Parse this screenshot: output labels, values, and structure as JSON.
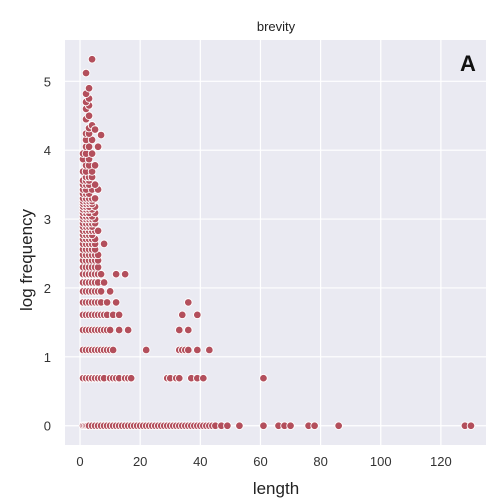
{
  "chart_data": {
    "type": "scatter",
    "title": "brevity",
    "panel_label": "A",
    "xlabel": "length",
    "ylabel": "log frequency",
    "xlim": [
      -5,
      135
    ],
    "ylim": [
      -0.28,
      5.6
    ],
    "xticks": [
      0,
      20,
      40,
      60,
      80,
      100,
      120
    ],
    "yticks": [
      0,
      1,
      2,
      3,
      4,
      5
    ],
    "grid": true,
    "style": {
      "background": "#eaeaf2",
      "grid_color": "#ffffff",
      "marker_color": "#b34f5c",
      "marker_edge": "#ffffff"
    },
    "series": [
      {
        "points": [
          [
            1,
            0
          ],
          [
            1.5,
            0
          ],
          [
            2,
            0
          ],
          [
            2.5,
            0
          ],
          [
            3,
            0
          ],
          [
            4,
            0
          ],
          [
            5,
            0
          ],
          [
            6,
            0
          ],
          [
            7,
            0
          ],
          [
            8,
            0
          ],
          [
            9,
            0
          ],
          [
            10,
            0
          ],
          [
            11,
            0
          ],
          [
            12,
            0
          ],
          [
            13,
            0
          ],
          [
            14,
            0
          ],
          [
            15,
            0
          ],
          [
            16,
            0
          ],
          [
            17,
            0
          ],
          [
            18,
            0
          ],
          [
            19,
            0
          ],
          [
            20,
            0
          ],
          [
            21,
            0
          ],
          [
            22,
            0
          ],
          [
            23,
            0
          ],
          [
            24,
            0
          ],
          [
            25,
            0
          ],
          [
            26,
            0
          ],
          [
            27,
            0
          ],
          [
            28,
            0
          ],
          [
            29,
            0
          ],
          [
            30,
            0
          ],
          [
            31,
            0
          ],
          [
            32,
            0
          ],
          [
            33,
            0
          ],
          [
            34,
            0
          ],
          [
            35,
            0
          ],
          [
            36,
            0
          ],
          [
            37,
            0
          ],
          [
            38,
            0
          ],
          [
            39,
            0
          ],
          [
            40,
            0
          ],
          [
            41,
            0
          ],
          [
            42,
            0
          ],
          [
            43,
            0
          ],
          [
            44,
            0
          ],
          [
            45,
            0
          ],
          [
            47,
            0
          ],
          [
            49,
            0
          ],
          [
            53,
            0
          ],
          [
            61,
            0
          ],
          [
            66,
            0
          ],
          [
            68,
            0
          ],
          [
            70,
            0
          ],
          [
            76,
            0
          ],
          [
            78,
            0
          ],
          [
            86,
            0
          ],
          [
            128,
            0
          ],
          [
            130,
            0
          ],
          [
            1,
            0.69
          ],
          [
            2,
            0.69
          ],
          [
            3,
            0.69
          ],
          [
            4,
            0.69
          ],
          [
            5,
            0.69
          ],
          [
            6,
            0.69
          ],
          [
            7,
            0.69
          ],
          [
            8,
            0.69
          ],
          [
            10,
            0.69
          ],
          [
            11,
            0.69
          ],
          [
            12,
            0.69
          ],
          [
            13,
            0.69
          ],
          [
            15,
            0.69
          ],
          [
            16,
            0.69
          ],
          [
            17,
            0.69
          ],
          [
            29,
            0.69
          ],
          [
            30,
            0.69
          ],
          [
            32,
            0.69
          ],
          [
            33,
            0.69
          ],
          [
            37,
            0.69
          ],
          [
            39,
            0.69
          ],
          [
            41,
            0.69
          ],
          [
            61,
            0.69
          ],
          [
            1,
            1.1
          ],
          [
            2,
            1.1
          ],
          [
            3,
            1.1
          ],
          [
            4,
            1.1
          ],
          [
            5,
            1.1
          ],
          [
            6,
            1.1
          ],
          [
            7,
            1.1
          ],
          [
            8,
            1.1
          ],
          [
            9,
            1.1
          ],
          [
            10,
            1.1
          ],
          [
            11,
            1.1
          ],
          [
            22,
            1.1
          ],
          [
            33,
            1.1
          ],
          [
            34,
            1.1
          ],
          [
            35,
            1.1
          ],
          [
            36,
            1.1
          ],
          [
            39,
            1.1
          ],
          [
            43,
            1.1
          ],
          [
            1,
            1.39
          ],
          [
            2,
            1.39
          ],
          [
            3,
            1.39
          ],
          [
            4,
            1.39
          ],
          [
            5,
            1.39
          ],
          [
            6,
            1.39
          ],
          [
            7,
            1.39
          ],
          [
            8,
            1.39
          ],
          [
            9,
            1.39
          ],
          [
            10,
            1.39
          ],
          [
            13,
            1.39
          ],
          [
            16,
            1.39
          ],
          [
            33,
            1.39
          ],
          [
            36,
            1.39
          ],
          [
            1,
            1.61
          ],
          [
            2,
            1.61
          ],
          [
            3,
            1.61
          ],
          [
            4,
            1.61
          ],
          [
            5,
            1.61
          ],
          [
            6,
            1.61
          ],
          [
            7,
            1.61
          ],
          [
            8,
            1.61
          ],
          [
            9,
            1.61
          ],
          [
            11,
            1.61
          ],
          [
            13,
            1.61
          ],
          [
            34,
            1.61
          ],
          [
            39,
            1.61
          ],
          [
            1,
            1.79
          ],
          [
            2,
            1.79
          ],
          [
            3,
            1.79
          ],
          [
            4,
            1.79
          ],
          [
            5,
            1.79
          ],
          [
            6,
            1.79
          ],
          [
            7,
            1.79
          ],
          [
            9,
            1.79
          ],
          [
            12,
            1.79
          ],
          [
            36,
            1.79
          ],
          [
            1,
            1.95
          ],
          [
            2,
            1.95
          ],
          [
            3,
            1.95
          ],
          [
            4,
            1.95
          ],
          [
            5,
            1.95
          ],
          [
            6,
            1.95
          ],
          [
            7,
            1.95
          ],
          [
            10,
            1.95
          ],
          [
            1,
            2.08
          ],
          [
            2,
            2.08
          ],
          [
            3,
            2.08
          ],
          [
            4,
            2.08
          ],
          [
            5,
            2.08
          ],
          [
            6,
            2.08
          ],
          [
            8,
            2.08
          ],
          [
            1,
            2.2
          ],
          [
            2,
            2.2
          ],
          [
            3,
            2.2
          ],
          [
            4,
            2.2
          ],
          [
            5,
            2.2
          ],
          [
            6,
            2.2
          ],
          [
            7,
            2.2
          ],
          [
            12,
            2.2
          ],
          [
            15,
            2.2
          ],
          [
            1,
            2.3
          ],
          [
            2,
            2.3
          ],
          [
            3,
            2.3
          ],
          [
            4,
            2.3
          ],
          [
            5,
            2.3
          ],
          [
            6,
            2.3
          ],
          [
            1,
            2.4
          ],
          [
            2,
            2.4
          ],
          [
            3,
            2.4
          ],
          [
            4,
            2.4
          ],
          [
            5,
            2.4
          ],
          [
            6,
            2.4
          ],
          [
            1,
            2.48
          ],
          [
            2,
            2.48
          ],
          [
            3,
            2.48
          ],
          [
            4,
            2.48
          ],
          [
            5,
            2.48
          ],
          [
            6,
            2.48
          ],
          [
            1,
            2.56
          ],
          [
            2,
            2.56
          ],
          [
            3,
            2.56
          ],
          [
            4,
            2.56
          ],
          [
            5,
            2.56
          ],
          [
            1,
            2.64
          ],
          [
            2,
            2.64
          ],
          [
            3,
            2.64
          ],
          [
            4,
            2.64
          ],
          [
            5,
            2.64
          ],
          [
            8,
            2.64
          ],
          [
            1,
            2.71
          ],
          [
            2,
            2.71
          ],
          [
            3,
            2.71
          ],
          [
            4,
            2.71
          ],
          [
            5,
            2.71
          ],
          [
            1,
            2.77
          ],
          [
            2,
            2.77
          ],
          [
            3,
            2.77
          ],
          [
            4,
            2.77
          ],
          [
            1,
            2.83
          ],
          [
            2,
            2.83
          ],
          [
            3,
            2.83
          ],
          [
            4,
            2.83
          ],
          [
            5,
            2.83
          ],
          [
            6,
            2.83
          ],
          [
            1,
            2.89
          ],
          [
            2,
            2.89
          ],
          [
            3,
            2.89
          ],
          [
            4,
            2.89
          ],
          [
            1,
            2.94
          ],
          [
            2,
            2.94
          ],
          [
            3,
            2.94
          ],
          [
            4,
            2.94
          ],
          [
            5,
            2.94
          ],
          [
            1,
            3.0
          ],
          [
            2,
            3.0
          ],
          [
            3,
            3.0
          ],
          [
            4,
            3.0
          ],
          [
            5,
            3.0
          ],
          [
            1,
            3.04
          ],
          [
            2,
            3.04
          ],
          [
            3,
            3.04
          ],
          [
            4,
            3.04
          ],
          [
            1,
            3.09
          ],
          [
            2,
            3.09
          ],
          [
            3,
            3.09
          ],
          [
            5,
            3.09
          ],
          [
            1,
            3.14
          ],
          [
            2,
            3.14
          ],
          [
            3,
            3.14
          ],
          [
            4,
            3.14
          ],
          [
            1,
            3.18
          ],
          [
            2,
            3.18
          ],
          [
            3,
            3.18
          ],
          [
            5,
            3.18
          ],
          [
            1,
            3.22
          ],
          [
            2,
            3.22
          ],
          [
            3,
            3.22
          ],
          [
            4,
            3.22
          ],
          [
            1,
            3.26
          ],
          [
            2,
            3.26
          ],
          [
            3,
            3.26
          ],
          [
            4,
            3.26
          ],
          [
            1,
            3.3
          ],
          [
            2,
            3.3
          ],
          [
            3,
            3.3
          ],
          [
            4,
            3.3
          ],
          [
            5,
            3.3
          ],
          [
            1,
            3.37
          ],
          [
            2,
            3.37
          ],
          [
            3,
            3.37
          ],
          [
            1,
            3.43
          ],
          [
            2,
            3.43
          ],
          [
            4,
            3.43
          ],
          [
            6,
            3.43
          ],
          [
            1,
            3.5
          ],
          [
            2,
            3.5
          ],
          [
            3,
            3.5
          ],
          [
            5,
            3.5
          ],
          [
            1,
            3.56
          ],
          [
            2,
            3.56
          ],
          [
            3,
            3.56
          ],
          [
            2,
            3.61
          ],
          [
            3,
            3.61
          ],
          [
            4,
            3.61
          ],
          [
            1,
            3.69
          ],
          [
            2,
            3.69
          ],
          [
            4,
            3.69
          ],
          [
            2,
            3.78
          ],
          [
            3,
            3.78
          ],
          [
            5,
            3.78
          ],
          [
            1,
            3.87
          ],
          [
            3,
            3.87
          ],
          [
            1,
            3.95
          ],
          [
            2,
            3.95
          ],
          [
            4,
            3.95
          ],
          [
            2,
            4.05
          ],
          [
            3,
            4.05
          ],
          [
            6,
            4.05
          ],
          [
            2,
            4.15
          ],
          [
            4,
            4.15
          ],
          [
            2,
            4.24
          ],
          [
            3,
            4.24
          ],
          [
            7,
            4.22
          ],
          [
            3,
            4.32
          ],
          [
            4,
            4.36
          ],
          [
            5,
            4.3
          ],
          [
            2,
            4.45
          ],
          [
            3,
            4.5
          ],
          [
            2,
            4.6
          ],
          [
            3,
            4.65
          ],
          [
            2,
            4.7
          ],
          [
            3,
            4.75
          ],
          [
            2,
            4.82
          ],
          [
            3,
            4.9
          ],
          [
            2,
            5.12
          ],
          [
            4,
            5.32
          ]
        ]
      }
    ]
  }
}
